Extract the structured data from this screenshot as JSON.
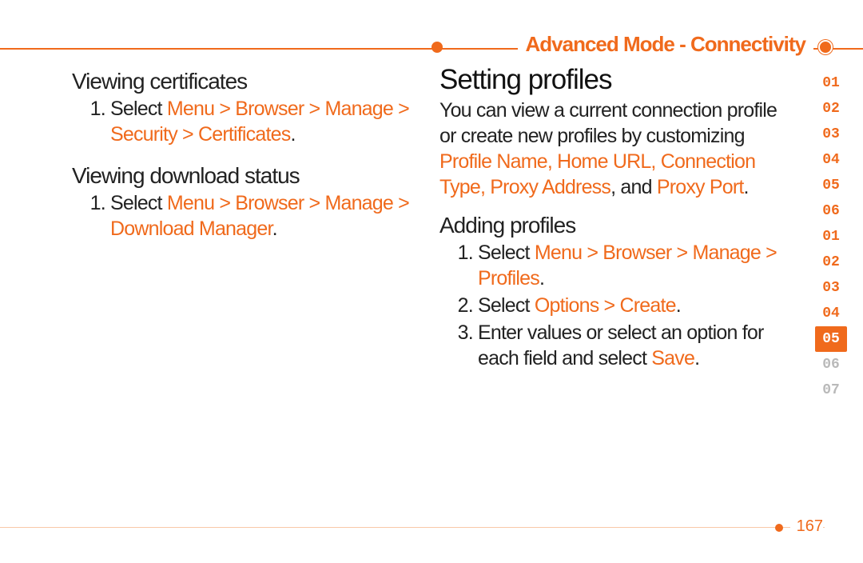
{
  "colors": {
    "accent": "#f06a1c",
    "text": "#222222",
    "dim": "#b9b9b9",
    "bg": "#ffffff"
  },
  "header": {
    "title": "Advanced Mode - Connectivity"
  },
  "left": {
    "section1": {
      "heading": "Viewing certificates",
      "step_prefix": "Select ",
      "path": "Menu > Browser > Manage > Security > Certificates"
    },
    "section2": {
      "heading": "Viewing download status",
      "step_prefix": "Select ",
      "path": "Menu > Browser > Manage > Download Manager"
    }
  },
  "right": {
    "major": "Setting profiles",
    "intro_pre": "You can view a current connection profile or create new profiles by customizing ",
    "intro_terms": "Profile Name, Home URL, Connection Type, Proxy Address",
    "intro_mid": ", and ",
    "intro_last": "Proxy Port",
    "sub": "Adding profiles",
    "steps": {
      "s1_pre": "Select ",
      "s1_path": "Menu > Browser > Manage > Profiles",
      "s2_pre": "Select ",
      "s2_path": "Options > Create",
      "s3_pre": "Enter values or select an option for each field and select ",
      "s3_hl": "Save"
    }
  },
  "tabs": [
    "01",
    "02",
    "03",
    "04",
    "05",
    "06",
    "01",
    "02",
    "03",
    "04",
    "05",
    "06",
    "07"
  ],
  "tabs_style": {
    "active_index": 10,
    "dim_from_index": 11
  },
  "page_number": "167"
}
